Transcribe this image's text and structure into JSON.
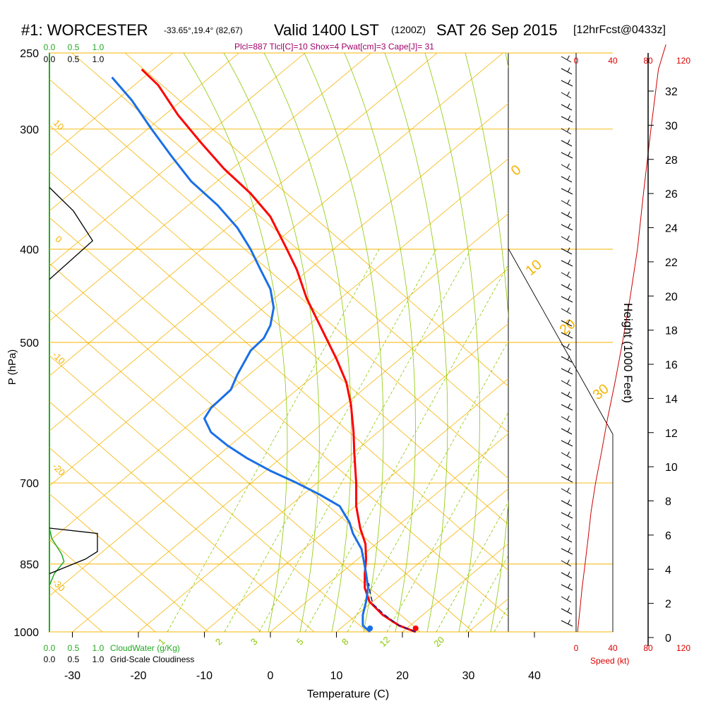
{
  "header": {
    "station": "#1: WORCESTER",
    "coords": "-33.65°,19.4° (82,67)",
    "valid": "Valid 1400 LST",
    "zulu": "(1200Z)",
    "date": "SAT 26 Sep 2015",
    "forecast": "[12hrFcst@0433z]",
    "indices": "Plcl=887 Tlcl[C]=10 Shox=4 Pwat[cm]=3 Cape[J]= 31"
  },
  "colors": {
    "temperature": "#ff0000",
    "dewpoint": "#1a6fe6",
    "parcel": "#1a1a8c",
    "isobar": "#f5b400",
    "dry_adiabat": "#f5b400",
    "moist_adiabat": "#8cc800",
    "mixing_ratio": "#8cc800",
    "cloud_water": "#22aa22",
    "cloudiness": "#000000",
    "wind_speed": "#cc0000"
  },
  "chart_data": {
    "type": "line",
    "xlabel": "Temperature (C)",
    "ylabel": "P (hPa)",
    "xlim": [
      -33,
      47
    ],
    "pressure_levels": [
      250,
      300,
      400,
      500,
      700,
      850,
      1000
    ],
    "x_ticks": [
      -30,
      -20,
      -10,
      0,
      10,
      20,
      30,
      40
    ],
    "series": [
      {
        "key": "temperature",
        "points": [
          [
            22,
            1000
          ],
          [
            19.5,
            985
          ],
          [
            17,
            960
          ],
          [
            15,
            930
          ],
          [
            14.3,
            900
          ],
          [
            14.3,
            870
          ],
          [
            14.5,
            840
          ],
          [
            14.4,
            810
          ],
          [
            13.6,
            780
          ],
          [
            13,
            740
          ],
          [
            13,
            700
          ],
          [
            12.7,
            650
          ],
          [
            12.6,
            620
          ],
          [
            12.2,
            580
          ],
          [
            11.5,
            550
          ],
          [
            10,
            520
          ],
          [
            7.5,
            480
          ],
          [
            5.5,
            450
          ],
          [
            4,
            420
          ],
          [
            2.5,
            400
          ],
          [
            0,
            370
          ],
          [
            -3,
            350
          ],
          [
            -7,
            330
          ],
          [
            -10.5,
            310
          ],
          [
            -14,
            290
          ],
          [
            -17,
            270
          ],
          [
            -19.5,
            260
          ]
        ]
      },
      {
        "key": "dewpoint",
        "points": [
          [
            15.1,
            1000
          ],
          [
            14,
            985
          ],
          [
            14,
            960
          ],
          [
            14.5,
            930
          ],
          [
            14.8,
            900
          ],
          [
            14.5,
            870
          ],
          [
            14.1,
            840
          ],
          [
            13.8,
            820
          ],
          [
            12.5,
            790
          ],
          [
            12,
            770
          ],
          [
            10.5,
            740
          ],
          [
            7.5,
            720
          ],
          [
            4,
            700
          ],
          [
            0,
            680
          ],
          [
            -3.5,
            660
          ],
          [
            -6.5,
            640
          ],
          [
            -9,
            620
          ],
          [
            -10,
            600
          ],
          [
            -9,
            585
          ],
          [
            -6,
            560
          ],
          [
            -5,
            540
          ],
          [
            -3,
            510
          ],
          [
            -1,
            495
          ],
          [
            0,
            480
          ],
          [
            0.5,
            460
          ],
          [
            0,
            440
          ],
          [
            -1.5,
            420
          ],
          [
            -3,
            400
          ],
          [
            -5,
            380
          ],
          [
            -8,
            360
          ],
          [
            -12,
            340
          ],
          [
            -15,
            320
          ],
          [
            -18,
            300
          ],
          [
            -21,
            280
          ],
          [
            -24,
            265
          ]
        ]
      },
      {
        "key": "parcel",
        "points": [
          [
            22,
            1000
          ],
          [
            19.5,
            985
          ],
          [
            17.3,
            960
          ],
          [
            15.5,
            935
          ],
          [
            15.1,
            910
          ],
          [
            14.9,
            890
          ]
        ]
      }
    ],
    "surface_points": {
      "temperature": [
        22,
        1000
      ],
      "dewpoint": [
        15.1,
        1000
      ]
    },
    "dry_adiabat_labels": [
      "10",
      "0",
      "-10",
      "-20",
      "-30"
    ],
    "moist_adiabat_labels": [
      "0",
      "10",
      "20",
      "30"
    ],
    "mixing_ratio_labels": [
      "1",
      "2",
      "3",
      "5",
      "8",
      "12",
      "20"
    ],
    "cloud_water": {
      "label": "CloudWater (g/Kg)",
      "ticks": [
        "0.0",
        "0.5",
        "1.0"
      ],
      "points": [
        [
          0,
          780
        ],
        [
          0.05,
          800
        ],
        [
          0.25,
          830
        ],
        [
          0.3,
          845
        ],
        [
          0.1,
          870
        ],
        [
          0,
          895
        ]
      ]
    },
    "cloudiness": {
      "label": "Grid-Scale Cloudiness",
      "ticks": [
        "0.0",
        "0.5",
        "1.0"
      ],
      "layers": [
        [
          [
            0,
            345
          ],
          [
            0.4,
            365
          ],
          [
            0.72,
            392
          ],
          [
            0,
            430
          ]
        ],
        [
          [
            0,
            780
          ],
          [
            0.8,
            790
          ],
          [
            0.8,
            825
          ],
          [
            0.6,
            840
          ],
          [
            0,
            870
          ]
        ]
      ]
    },
    "wind": {
      "label": "Speed (kt)",
      "ticks": [
        "0",
        "40",
        "80",
        "120"
      ],
      "profile": [
        [
          2,
          1000
        ],
        [
          5,
          950
        ],
        [
          8,
          900
        ],
        [
          12,
          850
        ],
        [
          16,
          800
        ],
        [
          20,
          750
        ],
        [
          26,
          700
        ],
        [
          34,
          650
        ],
        [
          42,
          600
        ],
        [
          52,
          550
        ],
        [
          62,
          500
        ],
        [
          72,
          450
        ],
        [
          82,
          400
        ],
        [
          90,
          350
        ],
        [
          100,
          300
        ],
        [
          110,
          260
        ],
        [
          120,
          245
        ]
      ]
    },
    "height_axis": {
      "label": "Height (1000 Feet)",
      "ticks": [
        "0",
        "2",
        "4",
        "6",
        "8",
        "10",
        "12",
        "14",
        "16",
        "18",
        "20",
        "22",
        "24",
        "26",
        "28",
        "30",
        "32"
      ]
    }
  }
}
